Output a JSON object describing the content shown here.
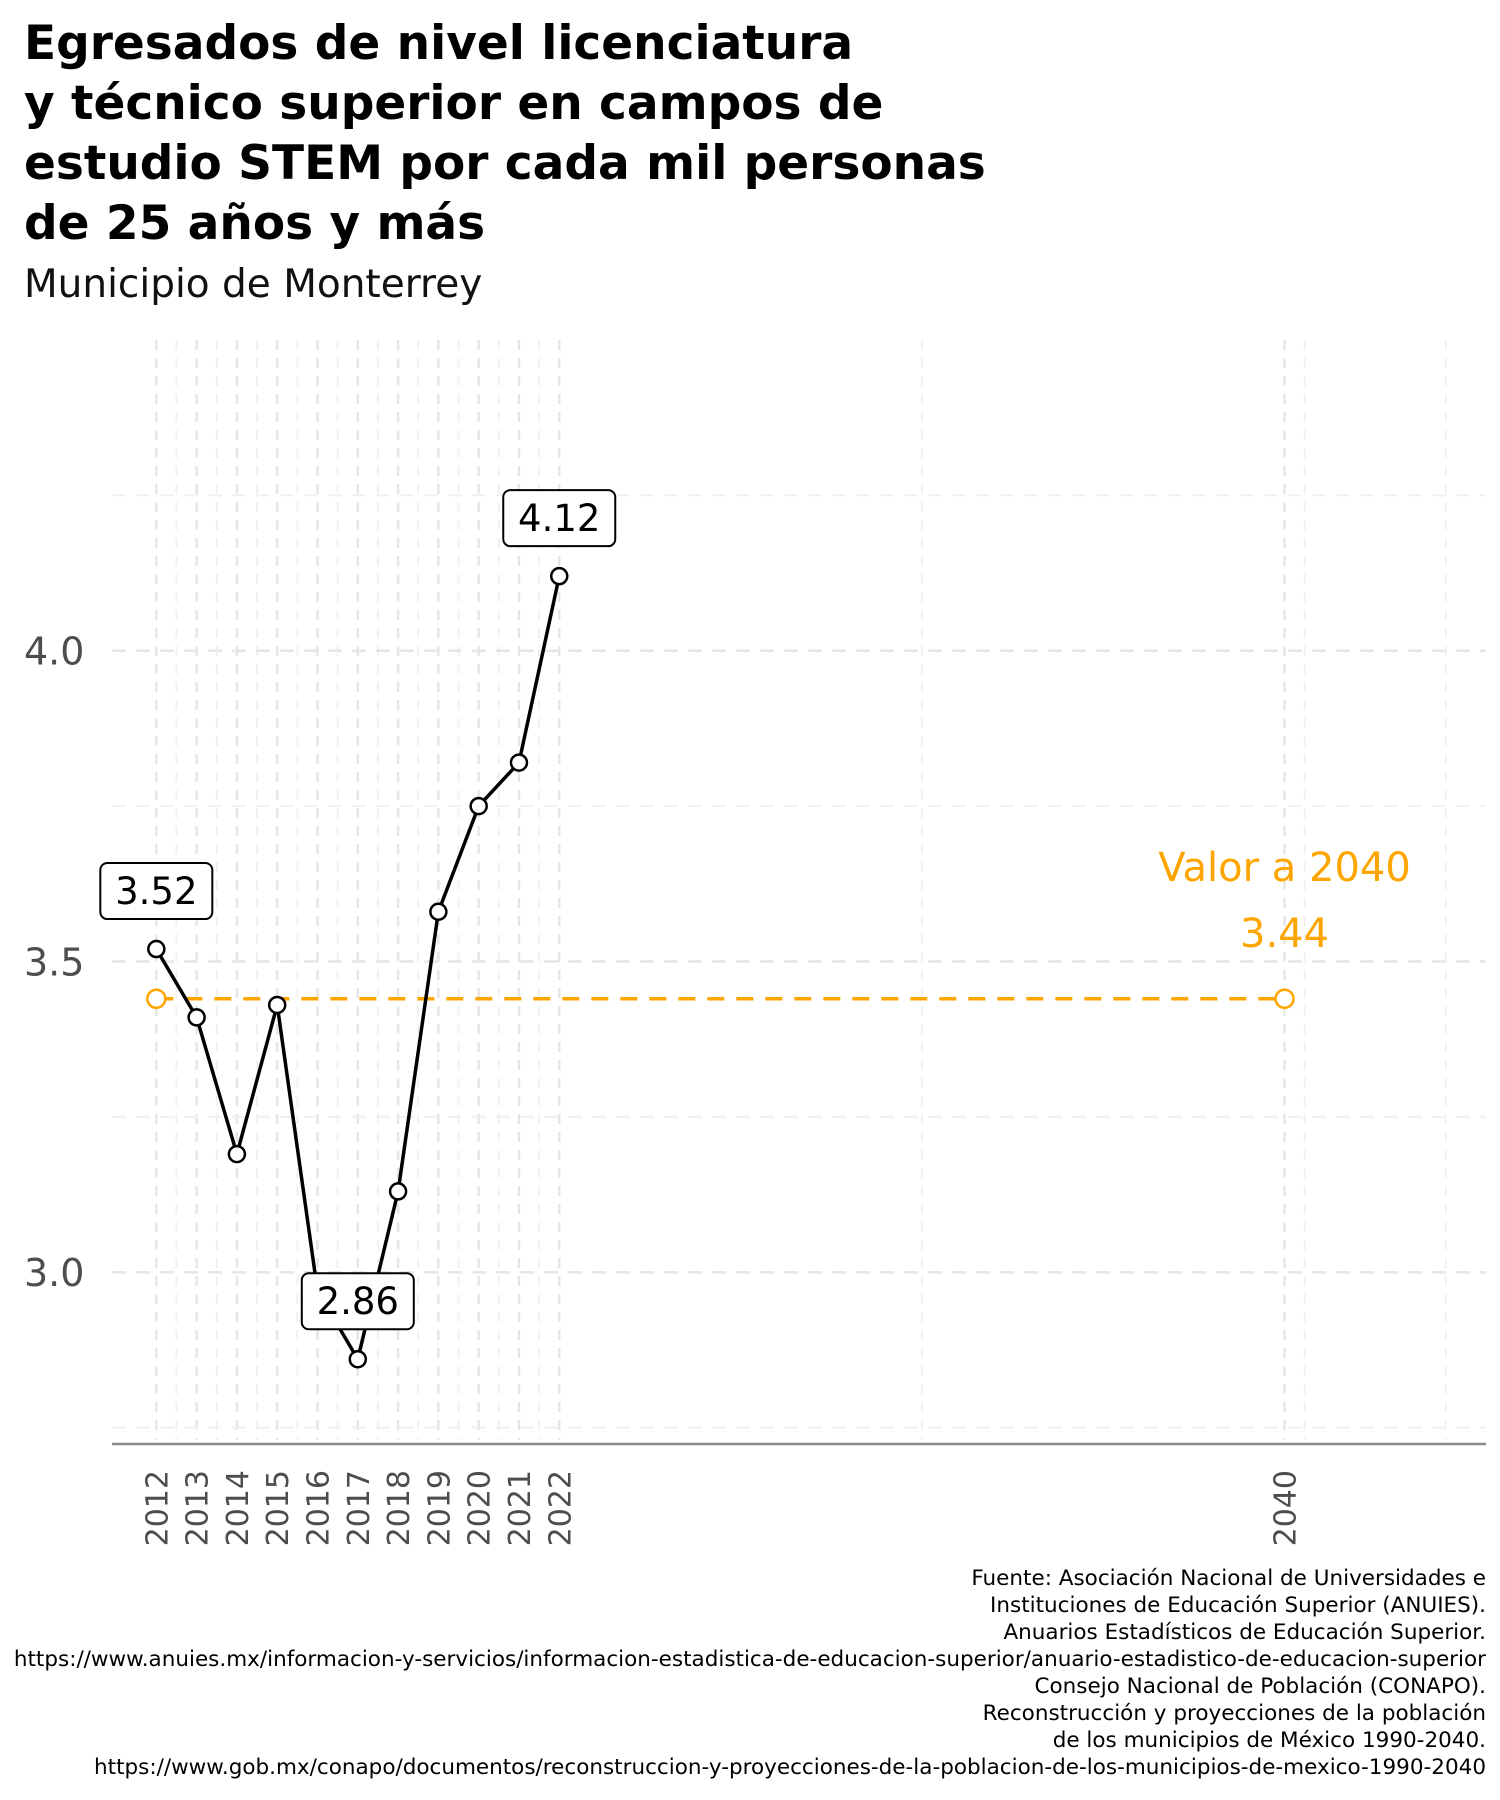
{
  "title": "Egresados de nivel licenciatura\ny técnico superior en campos de\nestudio STEM por cada mil personas\nde 25 años y más",
  "subtitle": "Municipio de Monterrey",
  "source": [
    "Fuente: Asociación Nacional de Universidades e",
    "Instituciones de Educación Superior (ANUIES).",
    "Anuarios Estadísticos de Educación Superior.",
    "https://www.anuies.mx/informacion-y-servicios/informacion-estadistica-de-educacion-superior/anuario-estadistico-de-educacion-superior",
    "Consejo Nacional de Población (CONAPO).",
    "Reconstrucción y proyecciones de la población",
    "de los municipios de México 1990-2040.",
    "https://www.gob.mx/conapo/documentos/reconstruccion-y-proyecciones-de-la-poblacion-de-los-municipios-de-mexico-1990-2040"
  ],
  "chart_data": {
    "type": "line",
    "xlabel": "",
    "ylabel": "",
    "x_ticks": [
      2012,
      2013,
      2014,
      2015,
      2016,
      2017,
      2018,
      2019,
      2020,
      2021,
      2022,
      2040
    ],
    "y_ticks": [
      3.0,
      3.5,
      4.0
    ],
    "y_tick_labels": [
      "3.0",
      "3.5",
      "4.0"
    ],
    "ylim": [
      2.73,
      4.5
    ],
    "grid": true,
    "series": [
      {
        "color": "#000000",
        "x": [
          2012,
          2013,
          2014,
          2015,
          2016,
          2017,
          2018,
          2019,
          2020,
          2021,
          2022
        ],
        "values": [
          3.52,
          3.41,
          3.19,
          3.43,
          2.97,
          2.86,
          3.13,
          3.58,
          3.75,
          3.82,
          4.12
        ]
      }
    ],
    "point_labels": [
      {
        "x": 2012,
        "value": 3.52,
        "label": "3.52"
      },
      {
        "x": 2017,
        "value": 2.86,
        "label": "2.86"
      },
      {
        "x": 2022,
        "value": 4.12,
        "label": "4.12"
      }
    ],
    "target": {
      "color": "#FFA500",
      "x_start": 2012,
      "x_end": 2040,
      "value": 3.44,
      "label": "Valor a 2040",
      "value_label": "3.44"
    }
  }
}
